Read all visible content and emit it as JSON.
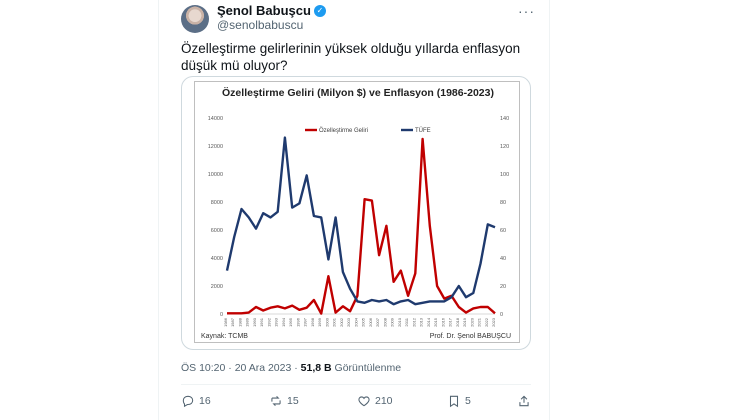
{
  "author": {
    "name": "Şenol Babuşcu",
    "handle": "@senolbabuscu"
  },
  "tweet_text": "Özelleştirme gelirlerinin yüksek olduğu yıllarda enflasyon düşük mü oluyor?",
  "meta": {
    "time": "ÖS 10:20 · 20 Ara 2023 · ",
    "views": "51,8 B",
    "views_label": " Görüntülenme"
  },
  "actions": {
    "replies": "16",
    "reposts": "15",
    "likes": "210",
    "bookmarks": "5"
  },
  "colors": {
    "series_red": "#c00000",
    "series_blue": "#1f3a6e",
    "verified": "#1d9bf0"
  },
  "chart_footer": {
    "source": "Kaynak: TCMB",
    "author": "Prof. Dr. Şenol BABUŞCU"
  },
  "chart_data": {
    "type": "line",
    "title": "Özelleştirme Geliri (Milyon $) ve Enflasyon (1986-2023)",
    "x": [
      "1986",
      "1987",
      "1988",
      "1989",
      "1990",
      "1991",
      "1992",
      "1993",
      "1994",
      "1995",
      "1996",
      "1997",
      "1998",
      "1999",
      "2000",
      "2001",
      "2002",
      "2003",
      "2004",
      "2005",
      "2006",
      "2007",
      "2008",
      "2009",
      "2010",
      "2011",
      "2012",
      "2013",
      "2014",
      "2015",
      "2016",
      "2017",
      "2018",
      "2019",
      "2020",
      "2021",
      "2022",
      "2023"
    ],
    "series": [
      {
        "name": "Özelleştirme Geliri",
        "axis": "left",
        "values": [
          50,
          50,
          50,
          100,
          500,
          250,
          450,
          550,
          400,
          600,
          300,
          450,
          1000,
          30,
          2700,
          100,
          550,
          200,
          1300,
          8200,
          8100,
          4200,
          6300,
          2300,
          3100,
          1300,
          2900,
          12500,
          6300,
          2000,
          1100,
          1300,
          500,
          100,
          400,
          500,
          500,
          50
        ]
      },
      {
        "name": "TÜFE",
        "axis": "right",
        "values": [
          31,
          55,
          75,
          69,
          61,
          72,
          69,
          73,
          126,
          76,
          79,
          99,
          70,
          69,
          39,
          69,
          30,
          18,
          9,
          8,
          10,
          9,
          10,
          7,
          9,
          10,
          7,
          8,
          9,
          9,
          9,
          12,
          20,
          12,
          15,
          36,
          64,
          62
        ]
      }
    ],
    "ylim_left": [
      0,
      14000
    ],
    "ylim_right": [
      0,
      140
    ],
    "yticks_left": [
      "0",
      "2000",
      "4000",
      "6000",
      "8000",
      "10000",
      "12000",
      "14000"
    ],
    "yticks_right": [
      "0",
      "20",
      "40",
      "60",
      "80",
      "100",
      "120",
      "140"
    ],
    "legend": "top-center",
    "grid": false
  }
}
